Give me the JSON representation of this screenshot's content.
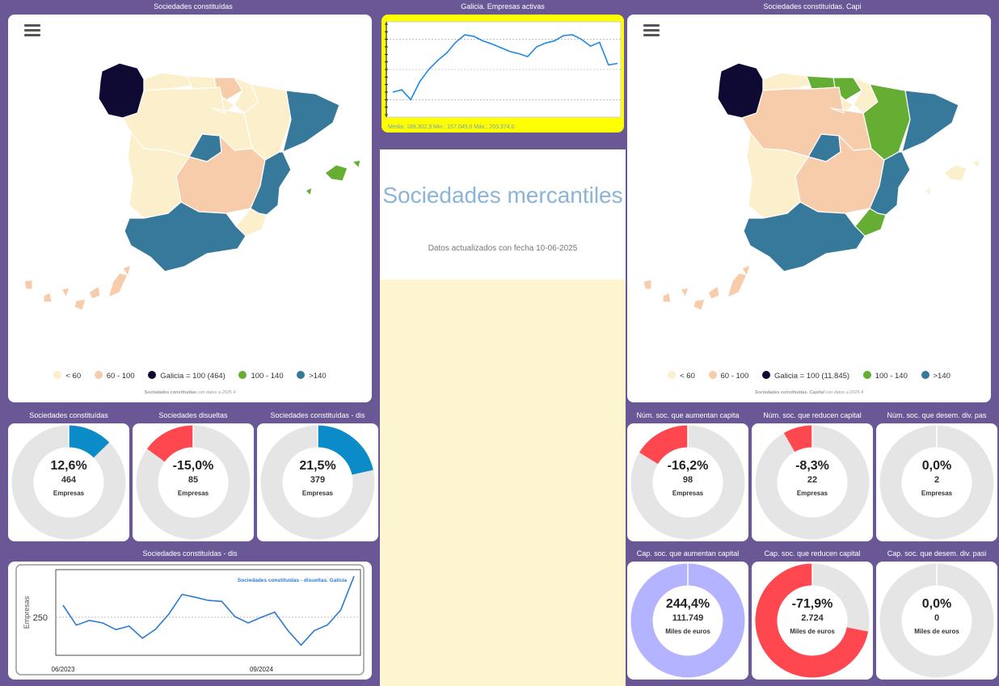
{
  "colors": {
    "background": "#6a5896",
    "legend_lt60": "#fcefcb",
    "legend_60_100": "#f7ccaa",
    "legend_galicia": "#0f0a34",
    "legend_100_140": "#66ad34",
    "legend_gt140": "#36799a",
    "gauge_positive": "#0b8bc7",
    "gauge_negative": "#ff474f",
    "gauge_track": "#e5e5e5",
    "gauge_lavender": "#b3b3ff"
  },
  "map_left": {
    "title": "Sociedades constituídas",
    "menu_icon": "hamburger-menu-icon",
    "legend": [
      "< 60",
      "60 - 100",
      "Galicia = 100 (464)",
      "100 - 140",
      ">140"
    ],
    "credit_bold": "Sociedades constituídas",
    "credit_rest": " con datos a 2025 4"
  },
  "map_right": {
    "title": "Sociedades constituídas. Capi",
    "menu_icon": "hamburger-menu-icon",
    "legend": [
      "< 60",
      "60 - 100",
      "Galicia = 100 (11.845)",
      "100 - 140",
      ">140"
    ],
    "credit_bold": "Sociedades constituídas. Capital",
    "credit_rest": " con datos a 2025 4"
  },
  "active_chart": {
    "title": "Galicia. Empresas activas",
    "stats": "Media: 189.302,9 Min.: 157.045,0 Máx.: 203.374,0"
  },
  "hero": {
    "title": "Sociedades mercantiles",
    "subtitle": "Datos actualizados con fecha 10-06-2025"
  },
  "gauges_left": [
    {
      "title": "Sociedades constituídas",
      "pct": "12,6%",
      "value": "464",
      "unit": "Empresas",
      "fraction": 0.126,
      "color": "#0b8bc7"
    },
    {
      "title": "Sociedades disueltas",
      "pct": "-15,0%",
      "value": "85",
      "unit": "Empresas",
      "fraction": -0.15,
      "color": "#ff474f"
    },
    {
      "title": "Sociedades constituídas - dis",
      "pct": "21,5%",
      "value": "379",
      "unit": "Empresas",
      "fraction": 0.215,
      "color": "#0b8bc7"
    }
  ],
  "gauges_right_top": [
    {
      "title": "Núm. soc. que aumentan capita",
      "pct": "-16,2%",
      "value": "98",
      "unit": "Empresas",
      "fraction": -0.162,
      "color": "#ff474f"
    },
    {
      "title": "Núm. soc. que reducen capital",
      "pct": "-8,3%",
      "value": "22",
      "unit": "Empresas",
      "fraction": -0.083,
      "color": "#ff474f"
    },
    {
      "title": "Núm. soc. que desem. div. pas",
      "pct": "0,0%",
      "value": "2",
      "unit": "Empresas",
      "fraction": 0,
      "color": "#0b8bc7"
    }
  ],
  "gauges_right_bottom": [
    {
      "title": "Cap. soc. que aumentan capital",
      "pct": "244,4%",
      "value": "111.749",
      "unit": "Miles de euros",
      "fraction": 1,
      "color": "#b3b3ff"
    },
    {
      "title": "Cap. soc. que reducen capital",
      "pct": "-71,9%",
      "value": "2.724",
      "unit": "Miles de euros",
      "fraction": -0.719,
      "color": "#ff474f"
    },
    {
      "title": "Cap. soc. que desem. div. pasi",
      "pct": "0,0%",
      "value": "0",
      "unit": "Miles de euros",
      "fraction": 0,
      "color": "#0b8bc7"
    }
  ],
  "line_chart": {
    "title": "Sociedades constituídas - dis",
    "legend": "Sociedades constituídas - disueltas. Galicia",
    "ylabel": "Empresas",
    "ytick": "250",
    "xticks": [
      "06/2023",
      "09/2024"
    ]
  },
  "chart_data": [
    {
      "type": "line",
      "title": "Galicia. Empresas activas",
      "xlabel": "",
      "ylabel": "",
      "series": [
        {
          "values": [
            165000,
            166500,
            160000,
            172000,
            180000,
            186000,
            191000,
            198000,
            203000,
            202000,
            199000,
            197000,
            194500,
            192000,
            190500,
            188500,
            195000,
            197500,
            199000,
            202500,
            203000,
            200000,
            195500,
            198000,
            183000,
            184000
          ]
        }
      ],
      "ylim": [
        150000,
        210000
      ]
    },
    {
      "type": "line",
      "title": "Sociedades constituídas - disueltas. Galicia",
      "xlabel": "",
      "ylabel": "Empresas",
      "x_ticks": [
        "06/2023",
        "09/2024"
      ],
      "series": [
        {
          "name": "Sociedades constituídas - disueltas. Galicia",
          "values": [
            288,
            225,
            240,
            232,
            211,
            222,
            184,
            212,
            260,
            322,
            313,
            303,
            300,
            252,
            232,
            250,
            266,
            208,
            162,
            208,
            226,
            273,
            379
          ]
        }
      ],
      "ylim": [
        130,
        400
      ]
    }
  ]
}
